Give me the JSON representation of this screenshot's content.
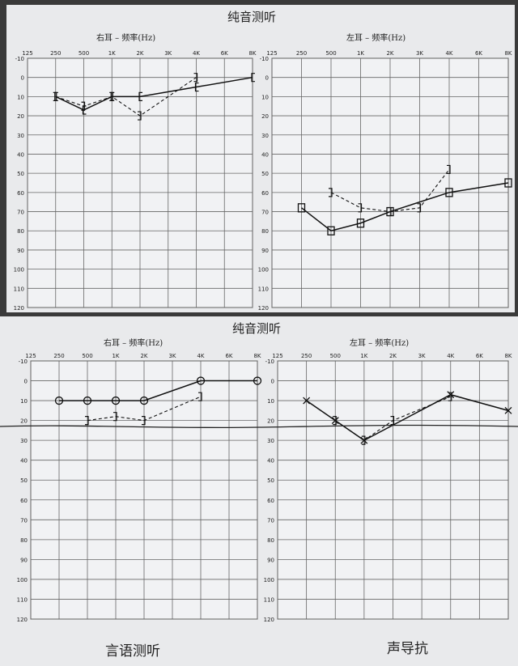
{
  "chart_data": [
    {
      "type": "line",
      "title": "纯音测听",
      "subtitle": "右耳 – 频率(Hz)",
      "frequency_ticks": [
        "125",
        "250",
        "500",
        "1K",
        "2K",
        "3K",
        "4K",
        "6K",
        "8K"
      ],
      "level_ticks": [
        "-10",
        "0",
        "10",
        "20",
        "30",
        "40",
        "50",
        "60",
        "70",
        "80",
        "90",
        "100",
        "110",
        "120"
      ],
      "ylim": [
        -10,
        120
      ],
      "y_inverted": true,
      "grid": true,
      "series": [
        {
          "style": "solid",
          "marker": "bracket",
          "x": [
            "250",
            "500",
            "1K",
            "2K",
            "4K",
            "8K"
          ],
          "values": [
            10,
            17,
            10,
            10,
            5,
            0
          ]
        },
        {
          "style": "dashed",
          "marker": "bracket",
          "x": [
            "250",
            "500",
            "1K",
            "2K",
            "4K"
          ],
          "values": [
            10,
            15,
            10,
            20,
            0
          ]
        }
      ]
    },
    {
      "type": "line",
      "subtitle": "左耳 – 频率(Hz)",
      "frequency_ticks": [
        "125",
        "250",
        "500",
        "1K",
        "2K",
        "3K",
        "4K",
        "6K",
        "8K"
      ],
      "level_ticks": [
        "-10",
        "0",
        "10",
        "20",
        "30",
        "40",
        "50",
        "60",
        "70",
        "80",
        "90",
        "100",
        "110",
        "120"
      ],
      "ylim": [
        -10,
        120
      ],
      "y_inverted": true,
      "grid": true,
      "series": [
        {
          "style": "solid",
          "marker": "square",
          "x": [
            "250",
            "500",
            "1K",
            "2K",
            "4K",
            "8K"
          ],
          "values": [
            68,
            80,
            76,
            70,
            60,
            55
          ]
        },
        {
          "style": "dashed",
          "marker": "bracket",
          "x": [
            "500",
            "1K",
            "2K",
            "3K",
            "4K"
          ],
          "values": [
            60,
            68,
            70,
            68,
            48
          ]
        }
      ]
    },
    {
      "type": "line",
      "title": "纯音测听",
      "subtitle": "右耳 – 频率(Hz)",
      "frequency_ticks": [
        "125",
        "250",
        "500",
        "1K",
        "2K",
        "3K",
        "4K",
        "6K",
        "8K"
      ],
      "level_ticks": [
        "-10",
        "0",
        "10",
        "20",
        "30",
        "40",
        "50",
        "60",
        "70",
        "80",
        "90",
        "100",
        "110",
        "120"
      ],
      "ylim": [
        -10,
        120
      ],
      "y_inverted": true,
      "grid": true,
      "series": [
        {
          "style": "solid",
          "marker": "circle",
          "x": [
            "250",
            "500",
            "1K",
            "2K",
            "4K",
            "8K"
          ],
          "values": [
            10,
            10,
            10,
            10,
            0,
            0
          ]
        },
        {
          "style": "dashed",
          "marker": "bracket",
          "x": [
            "500",
            "1K",
            "2K",
            "4K"
          ],
          "values": [
            20,
            18,
            20,
            8
          ]
        }
      ]
    },
    {
      "type": "line",
      "subtitle": "左耳 – 频率(Hz)",
      "frequency_ticks": [
        "125",
        "250",
        "500",
        "1K",
        "2K",
        "3K",
        "4K",
        "6K",
        "8K"
      ],
      "level_ticks": [
        "-10",
        "0",
        "10",
        "20",
        "30",
        "40",
        "50",
        "60",
        "70",
        "80",
        "90",
        "100",
        "110",
        "120"
      ],
      "ylim": [
        -10,
        120
      ],
      "y_inverted": true,
      "grid": true,
      "series": [
        {
          "style": "solid",
          "marker": "cross",
          "x": [
            "250",
            "500",
            "1K",
            "4K",
            "8K"
          ],
          "values": [
            10,
            20,
            30,
            7,
            15
          ]
        },
        {
          "style": "dashed",
          "marker": "bracket",
          "x": [
            "500",
            "1K",
            "2K",
            "4K"
          ],
          "values": [
            20,
            30,
            20,
            8
          ]
        }
      ]
    }
  ],
  "footer": {
    "left_label": "言语测听",
    "right_label": "声导抗"
  }
}
